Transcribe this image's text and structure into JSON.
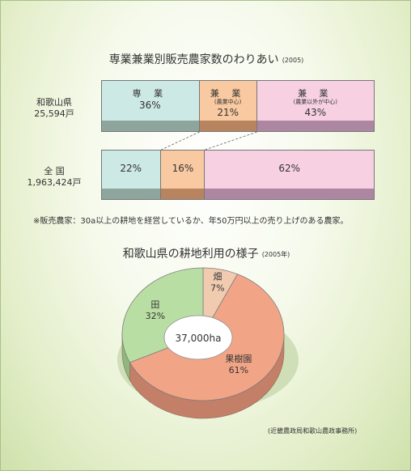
{
  "colors": {
    "full_time": "#cde9e6",
    "part_farming": "#f9c9a1",
    "part_nonfarming": "#f7d1e1",
    "full_time_shadow": "#8ea59d",
    "part_farming_shadow": "#b8835f",
    "part_nonfarming_shadow": "#ad86a2",
    "paddy": "#b9dea4",
    "orchard": "#f2a586",
    "field": "#f1cbb0",
    "paddy_side": "#8fb87e",
    "orchard_side": "#c37f68",
    "field_side": "#c09a83"
  },
  "chart_data": [
    {
      "type": "bar",
      "title": "専業兼業別販売農家数のわりあい",
      "title_year": "(2005)",
      "stacked": true,
      "orientation": "horizontal",
      "unit": "%",
      "categories": [
        "和歌山県",
        "全 国"
      ],
      "category_counts": [
        "25,594戸",
        "1,963,424戸"
      ],
      "series": [
        {
          "name": "専 業",
          "sub": "",
          "values": [
            36,
            22
          ],
          "labels": [
            "36%",
            "22%"
          ]
        },
        {
          "name": "兼 業",
          "sub": "(農業中心)",
          "values": [
            21,
            16
          ],
          "labels": [
            "21%",
            "16%"
          ]
        },
        {
          "name": "兼 業",
          "sub": "(農業以外が中心)",
          "values": [
            43,
            62
          ],
          "labels": [
            "43%",
            "62%"
          ]
        }
      ],
      "legend": "none",
      "grid": false
    },
    {
      "type": "pie",
      "title": "和歌山県の耕地利用の様子",
      "title_year": "(2005年)",
      "center_label": "37,000ha",
      "slices": [
        {
          "name": "畑",
          "value": 7,
          "label": "7%"
        },
        {
          "name": "果樹園",
          "value": 61,
          "label": "61%"
        },
        {
          "name": "田",
          "value": 32,
          "label": "32%"
        }
      ]
    }
  ],
  "note": "※販売農家：30a以上の耕地を経営しているか、年50万円以上の売り上げのある農家。",
  "source": "(近畿農政局和歌山農政事務所)"
}
